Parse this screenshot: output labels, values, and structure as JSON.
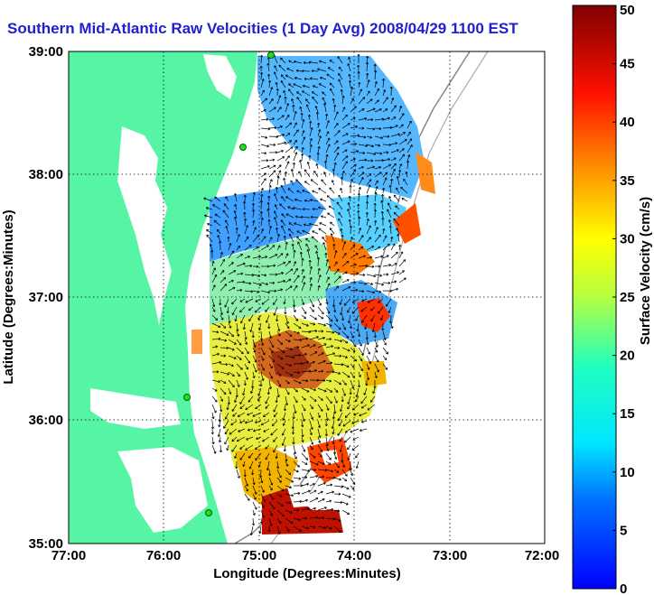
{
  "title": "Southern Mid-Atlantic Raw Velocities (1 Day Avg) 2008/04/29 1100 EST",
  "xlabel": "Longitude (Degrees:Minutes)",
  "ylabel": "Latitude (Degrees:Minutes)",
  "x_ticks": [
    "77:00",
    "76:00",
    "75:00",
    "74:00",
    "73:00",
    "72:00"
  ],
  "y_ticks": [
    "39:00",
    "38:00",
    "37:00",
    "36:00",
    "35:00"
  ],
  "colorbar": {
    "label": "Surface Velocity (cm/s)",
    "ticks": [
      "0",
      "5",
      "10",
      "15",
      "20",
      "25",
      "30",
      "35",
      "40",
      "45",
      "50"
    ],
    "min": 0,
    "max": 50
  },
  "colors": {
    "land": "#55f5a5",
    "title": "#1f1fd0",
    "station": "#22dd22"
  },
  "map": {
    "lon_range": [
      -77,
      -72
    ],
    "lat_range": [
      35,
      39
    ],
    "gridlines": "dotted",
    "stations": "green-dots"
  }
}
